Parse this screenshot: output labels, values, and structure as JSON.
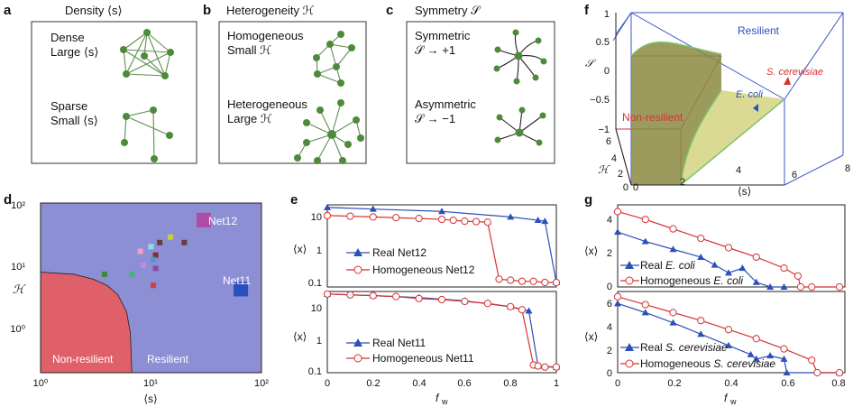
{
  "panels": {
    "a": {
      "letter": "a",
      "title": "Density ⟨s⟩",
      "top_label": [
        "Dense",
        "Large ⟨s⟩"
      ],
      "bottom_label": [
        "Sparse",
        "Small ⟨s⟩"
      ]
    },
    "b": {
      "letter": "b",
      "title": "Heterogeneity ℋ",
      "top_label": [
        "Homogeneous",
        "Small ℋ"
      ],
      "bottom_label": [
        "Heterogeneous",
        "Large ℋ"
      ]
    },
    "c": {
      "letter": "c",
      "title": "Symmetry 𝒮",
      "top_label": [
        "Symmetric",
        "𝒮  → +1"
      ],
      "bottom_label": [
        "Asymmetric",
        "𝒮  → −1"
      ]
    },
    "d": {
      "letter": "d",
      "ylabel": "ℋ",
      "xlabel": "⟨s⟩",
      "xticks": [
        "10⁰",
        "10¹",
        "10²"
      ],
      "yticks": [
        "10⁰",
        "10¹",
        "10²"
      ],
      "region_left": "Non-resilient",
      "region_right": "Resilient",
      "net12": "Net12",
      "net11": "Net11",
      "colors": {
        "resilient": "#8c8fd3",
        "nonresilient": "#e0606a"
      }
    },
    "e": {
      "letter": "e",
      "ylabel": "⟨x⟩",
      "xlabel": "f",
      "xlabel_sub": "w",
      "yticks": [
        "10",
        "1",
        "0.1"
      ],
      "xticks": [
        "0",
        "0.2",
        "0.4",
        "0.6",
        "0.8",
        "1"
      ],
      "legend_top": [
        "Real Net12",
        "Homogeneous Net12"
      ],
      "legend_bottom": [
        "Real Net11",
        "Homogeneous Net11"
      ]
    },
    "f": {
      "letter": "f",
      "zlabel": "𝒮",
      "ylabel": "ℋ",
      "xlabel": "⟨s⟩",
      "zticks": [
        "1",
        "0.5",
        "0",
        "−0.5",
        "−1"
      ],
      "yticks": [
        "6",
        "4",
        "2",
        "0"
      ],
      "xticks": [
        "0",
        "2",
        "4",
        "6",
        "8"
      ],
      "resilient": "Resilient",
      "nonresilient": "Non-resilient",
      "ecoli": "E. coli",
      "scerevisiae": "S. cerevisiae"
    },
    "g": {
      "letter": "g",
      "ylabel": "⟨x⟩",
      "xlabel": "f",
      "xlabel_sub": "w",
      "yticks_top": [
        "4",
        "2",
        "0"
      ],
      "yticks_bottom": [
        "6",
        "4",
        "2",
        "0"
      ],
      "xticks": [
        "0",
        "0.2",
        "0.4",
        "0.6",
        "0.8"
      ],
      "legend_top": [
        "Real ",
        "E. coli",
        "Homogeneous ",
        "E. coli"
      ],
      "legend_bottom": [
        "Real ",
        "S. cerevisiae",
        "Homogeneous ",
        "S. cerevisiae"
      ]
    }
  },
  "chart_data": [
    {
      "type": "scatter",
      "panel": "d",
      "xlim": [
        1,
        100
      ],
      "ylim": [
        0.1,
        100
      ],
      "xscale": "log",
      "yscale": "log",
      "points": [
        {
          "name": "Net12",
          "x": 30,
          "y": 50,
          "color": "#b04aa8",
          "size": "large"
        },
        {
          "name": "Net11",
          "x": 65,
          "y": 3,
          "color": "#2a4fbf",
          "size": "large"
        },
        {
          "x": 12,
          "y": 20,
          "color": "#6b3b3b"
        },
        {
          "x": 15,
          "y": 25,
          "color": "#cccc33"
        },
        {
          "x": 20,
          "y": 20,
          "color": "#6b3b3b"
        },
        {
          "x": 10,
          "y": 17,
          "color": "#8ae0e0"
        },
        {
          "x": 8,
          "y": 14,
          "color": "#f4a0c0"
        },
        {
          "x": 11,
          "y": 12,
          "color": "#8b2a2a"
        },
        {
          "x": 10.5,
          "y": 10,
          "color": "#4a9ad0"
        },
        {
          "x": 8.5,
          "y": 8,
          "color": "#cc88dd"
        },
        {
          "x": 11,
          "y": 7,
          "color": "#8b4aa0"
        },
        {
          "x": 3.8,
          "y": 5.5,
          "color": "#3a8a3a"
        },
        {
          "x": 6.7,
          "y": 5.5,
          "color": "#4ab08a"
        },
        {
          "x": 10.5,
          "y": 3.5,
          "color": "#d04040"
        }
      ],
      "boundary": {
        "x": [
          1,
          2,
          3,
          4,
          5,
          6,
          6.5,
          6.7
        ],
        "y": [
          6,
          5.5,
          4.5,
          3.5,
          2.4,
          1.2,
          0.5,
          0.1
        ]
      }
    },
    {
      "type": "line",
      "panel": "e-top",
      "ylim": [
        0.1,
        20
      ],
      "yscale": "log",
      "xlim": [
        0,
        1
      ],
      "series": [
        {
          "name": "Real Net12",
          "x": [
            0,
            0.2,
            0.5,
            0.8,
            0.92,
            0.95,
            1.0
          ],
          "y": [
            19,
            17,
            14.5,
            10,
            8,
            7.5,
            0.12
          ]
        },
        {
          "name": "Homogeneous Net12",
          "x": [
            0,
            0.1,
            0.2,
            0.3,
            0.4,
            0.5,
            0.55,
            0.6,
            0.65,
            0.7,
            0.75,
            0.8,
            0.85,
            0.9,
            0.95,
            1.0
          ],
          "y": [
            11,
            10.5,
            10,
            9.5,
            9,
            8.5,
            8,
            7.5,
            7.3,
            7,
            0.15,
            0.14,
            0.13,
            0.13,
            0.12,
            0.12
          ]
        }
      ]
    },
    {
      "type": "line",
      "panel": "e-bottom",
      "ylim": [
        0.1,
        20
      ],
      "yscale": "log",
      "xlim": [
        0,
        1
      ],
      "series": [
        {
          "name": "Real Net11",
          "x": [
            0,
            0.2,
            0.4,
            0.6,
            0.8,
            0.88,
            0.92,
            1.0
          ],
          "y": [
            19,
            17,
            15,
            12,
            8,
            6,
            0.14,
            0.13
          ]
        },
        {
          "name": "Homogeneous Net11",
          "x": [
            0,
            0.1,
            0.2,
            0.3,
            0.4,
            0.5,
            0.6,
            0.7,
            0.8,
            0.85,
            0.9,
            0.92,
            0.95,
            1.0
          ],
          "y": [
            19,
            18,
            17,
            16,
            14,
            13,
            11.5,
            10,
            8,
            6.5,
            0.15,
            0.14,
            0.13,
            0.13
          ]
        }
      ]
    },
    {
      "type": "line",
      "panel": "g-top",
      "ylim": [
        0,
        5
      ],
      "xlim": [
        0,
        0.8
      ],
      "series": [
        {
          "name": "Real E. coli",
          "x": [
            0,
            0.1,
            0.2,
            0.3,
            0.35,
            0.4,
            0.45,
            0.5,
            0.55,
            0.6
          ],
          "y": [
            3.5,
            2.9,
            2.4,
            1.9,
            1.4,
            0.9,
            1.2,
            0.3,
            0,
            0
          ]
        },
        {
          "name": "Homogeneous E. coli",
          "x": [
            0,
            0.1,
            0.2,
            0.3,
            0.4,
            0.5,
            0.6,
            0.65,
            0.66,
            0.7,
            0.8
          ],
          "y": [
            4.8,
            4.3,
            3.7,
            3.1,
            2.5,
            1.9,
            1.2,
            0.7,
            0,
            0,
            0
          ]
        }
      ]
    },
    {
      "type": "line",
      "panel": "g-bottom",
      "ylim": [
        0,
        7
      ],
      "xlim": [
        0,
        0.8
      ],
      "series": [
        {
          "name": "Real S. cerevisiae",
          "x": [
            0,
            0.1,
            0.2,
            0.3,
            0.4,
            0.48,
            0.5,
            0.55,
            0.6,
            0.61,
            0.8
          ],
          "y": [
            6.1,
            5.3,
            4.4,
            3.4,
            2.4,
            1.6,
            1.2,
            1.5,
            1.2,
            0,
            0
          ]
        },
        {
          "name": "Homogeneous S. cerevisiae",
          "x": [
            0,
            0.1,
            0.2,
            0.3,
            0.4,
            0.5,
            0.6,
            0.7,
            0.72,
            0.8
          ],
          "y": [
            6.7,
            6.0,
            5.3,
            4.6,
            3.8,
            3.0,
            2.1,
            1.1,
            0,
            0
          ]
        }
      ]
    }
  ]
}
